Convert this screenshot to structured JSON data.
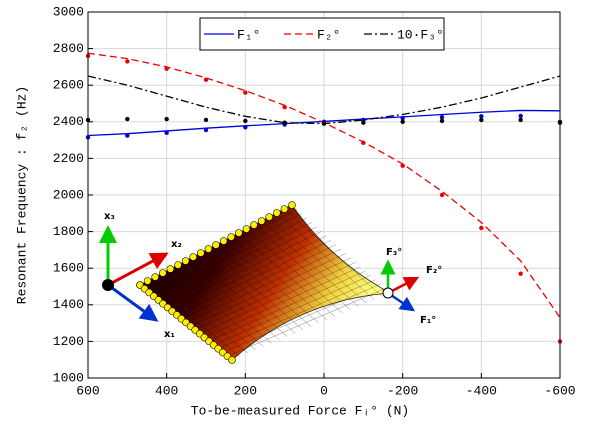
{
  "chart_data": {
    "type": "line",
    "x_label": "To-be-measured Force Fᵢ° (N)",
    "y_label": "Resonant Frequency : f₂ (Hz)",
    "x": [
      600,
      500,
      400,
      300,
      200,
      100,
      0,
      -100,
      -200,
      -300,
      -400,
      -500,
      -600
    ],
    "xlim": [
      600,
      -600
    ],
    "xticks": [
      600,
      400,
      200,
      0,
      -200,
      -400,
      -600
    ],
    "ylim": [
      1000,
      3000
    ],
    "yticks": [
      1000,
      1200,
      1400,
      1600,
      1800,
      2000,
      2200,
      2400,
      2600,
      2800,
      3000
    ],
    "grid": true,
    "legend": "top",
    "series": [
      {
        "name": "F₁°",
        "color": "#0000dd",
        "style": "solid",
        "values": [
          2325,
          2335,
          2350,
          2365,
          2378,
          2390,
          2402,
          2415,
          2427,
          2440,
          2452,
          2462,
          2460
        ]
      },
      {
        "name": "F₂°",
        "color": "#ee0000",
        "style": "dashed",
        "values": [
          2775,
          2745,
          2700,
          2640,
          2570,
          2490,
          2395,
          2290,
          2170,
          2020,
          1850,
          1640,
          1330
        ]
      },
      {
        "name": "10·F₃°",
        "color": "#000000",
        "style": "dashdot",
        "values": [
          2650,
          2600,
          2540,
          2480,
          2430,
          2395,
          2390,
          2410,
          2440,
          2480,
          2530,
          2590,
          2650
        ]
      },
      {
        "color": "#0000dd",
        "style": "dots",
        "values": [
          2315,
          2325,
          2340,
          2355,
          2370,
          2385,
          2400,
          2410,
          2420,
          2425,
          2430,
          2432,
          2400
        ]
      },
      {
        "color": "#ee0000",
        "style": "dots",
        "values": [
          2760,
          2730,
          2690,
          2630,
          2560,
          2480,
          2390,
          2285,
          2160,
          2000,
          1820,
          1570,
          1200
        ]
      },
      {
        "color": "#000000",
        "style": "dots",
        "values": [
          2410,
          2415,
          2415,
          2410,
          2405,
          2395,
          2390,
          2395,
          2400,
          2405,
          2410,
          2410,
          2395
        ]
      }
    ],
    "annotations": [
      "x₃",
      "x₂",
      "x₁",
      "F₃°",
      "F₂°",
      "F₁°"
    ]
  }
}
